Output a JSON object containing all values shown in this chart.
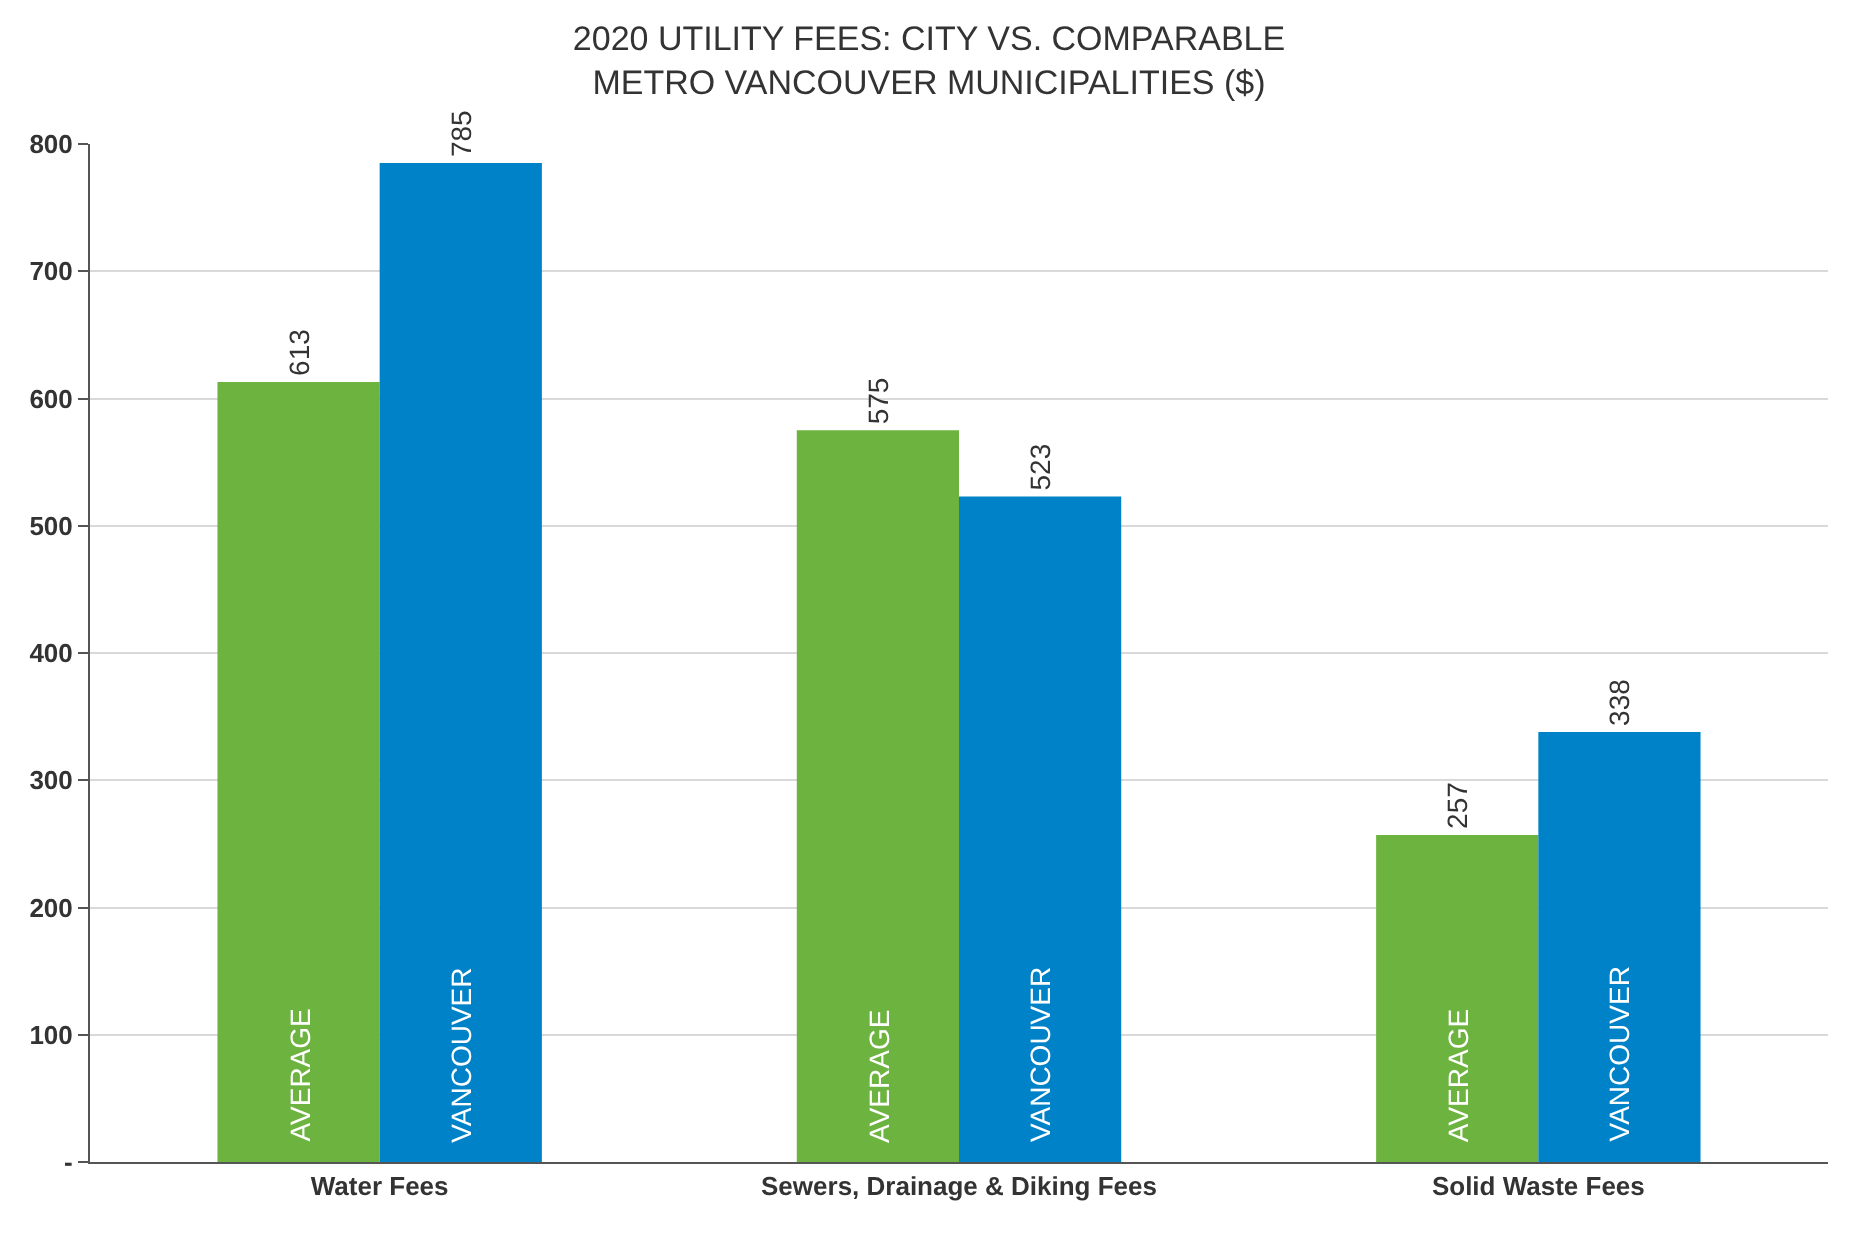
{
  "chart_data": {
    "type": "bar",
    "title": "2020 UTILITY FEES: CITY VS. COMPARABLE\nMETRO VANCOUVER MUNICIPALITIES ($)",
    "categories": [
      "Water Fees",
      "Sewers, Drainage & Diking Fees",
      "Solid Waste Fees"
    ],
    "series": [
      {
        "name": "AVERAGE",
        "color": "#6db33f",
        "values": [
          613,
          575,
          257
        ]
      },
      {
        "name": "VANCOUVER",
        "color": "#0082c8",
        "values": [
          785,
          523,
          338
        ]
      }
    ],
    "ylim": [
      0,
      800
    ],
    "yticks": [
      {
        "value": 0,
        "label": "-"
      },
      100,
      200,
      300,
      400,
      500,
      600,
      700,
      800
    ],
    "grid": "y",
    "legend": false,
    "data_labels": true
  }
}
